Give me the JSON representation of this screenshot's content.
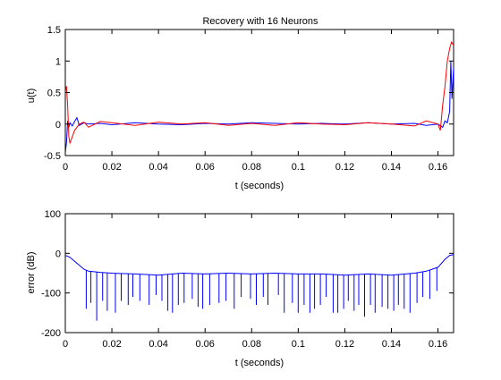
{
  "chart_data": [
    {
      "type": "line",
      "title": "Recovery with 16 Neurons",
      "xlabel": "t (seconds)",
      "ylabel": "u(t)",
      "xlim": [
        0,
        0.1667
      ],
      "ylim": [
        -0.5,
        1.5
      ],
      "xticks": [
        0,
        0.02,
        0.04,
        0.06,
        0.08,
        0.1,
        0.12,
        0.14,
        0.16
      ],
      "xtick_labels": [
        "0",
        "0.02",
        "0.04",
        "0.06",
        "0.08",
        "0.1",
        "0.12",
        "0.14",
        "0.16"
      ],
      "yticks": [
        -0.5,
        0,
        0.5,
        1,
        1.5
      ],
      "ytick_labels": [
        "-0.5",
        "0",
        "0.5",
        "1",
        "1.5"
      ],
      "grid": false,
      "series": [
        {
          "color": "#0000ff",
          "x": [
            0,
            0.0005,
            0.001,
            0.0015,
            0.002,
            0.003,
            0.004,
            0.005,
            0.006,
            0.008,
            0.01,
            0.015,
            0.02,
            0.03,
            0.04,
            0.05,
            0.06,
            0.07,
            0.08,
            0.09,
            0.1,
            0.11,
            0.12,
            0.13,
            0.14,
            0.15,
            0.155,
            0.16,
            0.162,
            0.163,
            0.164,
            0.165,
            0.1655,
            0.166,
            0.1667
          ],
          "y": [
            -0.45,
            -0.3,
            0.05,
            -0.05,
            0.02,
            -0.03,
            0.04,
            0.1,
            -0.02,
            0.02,
            0.0,
            0.01,
            -0.01,
            0.02,
            0.0,
            -0.01,
            0.01,
            0.0,
            0.02,
            0.01,
            0.0,
            0.01,
            0.0,
            0.02,
            0.0,
            0.01,
            -0.02,
            0.0,
            -0.05,
            0.05,
            0.02,
            0.2,
            1.0,
            0.4,
            0.9
          ]
        },
        {
          "color": "#ff0000",
          "x": [
            0,
            0.0005,
            0.001,
            0.0015,
            0.002,
            0.003,
            0.004,
            0.005,
            0.006,
            0.008,
            0.01,
            0.015,
            0.02,
            0.03,
            0.04,
            0.05,
            0.06,
            0.07,
            0.08,
            0.09,
            0.1,
            0.11,
            0.12,
            0.13,
            0.14,
            0.15,
            0.155,
            0.16,
            0.161,
            0.162,
            0.163,
            0.164,
            0.165,
            0.1658,
            0.1667
          ],
          "y": [
            0.5,
            0.6,
            0.3,
            -0.2,
            -0.3,
            -0.2,
            -0.1,
            -0.05,
            0.0,
            0.03,
            -0.05,
            0.04,
            0.02,
            -0.02,
            0.03,
            0.0,
            0.02,
            -0.02,
            0.01,
            -0.02,
            0.02,
            0.0,
            -0.01,
            0.02,
            0.0,
            -0.03,
            0.05,
            0.0,
            -0.1,
            0.3,
            0.6,
            1.0,
            1.2,
            1.3,
            1.25
          ]
        }
      ]
    },
    {
      "type": "line",
      "title": "",
      "xlabel": "t (seconds)",
      "ylabel": "error (dB)",
      "xlim": [
        0,
        0.1667
      ],
      "ylim": [
        -200,
        100
      ],
      "xticks": [
        0,
        0.02,
        0.04,
        0.06,
        0.08,
        0.1,
        0.12,
        0.14,
        0.16
      ],
      "xtick_labels": [
        "0",
        "0.02",
        "0.04",
        "0.06",
        "0.08",
        "0.1",
        "0.12",
        "0.14",
        "0.16"
      ],
      "yticks": [
        -200,
        -100,
        0,
        100
      ],
      "ytick_labels": [
        "-200",
        "-100",
        "0",
        "100"
      ],
      "grid": false,
      "series": [
        {
          "color": "#0000ff",
          "x": [
            0,
            0.002,
            0.004,
            0.006,
            0.008,
            0.01,
            0.015,
            0.02,
            0.03,
            0.04,
            0.05,
            0.06,
            0.07,
            0.08,
            0.09,
            0.1,
            0.11,
            0.12,
            0.13,
            0.14,
            0.15,
            0.155,
            0.16,
            0.163,
            0.165,
            0.1667
          ],
          "y": [
            -5,
            -10,
            -20,
            -30,
            -40,
            -45,
            -48,
            -50,
            -52,
            -55,
            -50,
            -52,
            -50,
            -52,
            -50,
            -52,
            -52,
            -55,
            -52,
            -55,
            -50,
            -45,
            -35,
            -15,
            -5,
            -3
          ],
          "dips": [
            [
              0.009,
              -140
            ],
            [
              0.011,
              -125
            ],
            [
              0.0135,
              -170
            ],
            [
              0.016,
              -120
            ],
            [
              0.018,
              -145
            ],
            [
              0.0215,
              -150
            ],
            [
              0.024,
              -120
            ],
            [
              0.027,
              -130
            ],
            [
              0.029,
              -110
            ],
            [
              0.032,
              -120
            ],
            [
              0.036,
              -130
            ],
            [
              0.039,
              -105
            ],
            [
              0.0415,
              -120
            ],
            [
              0.044,
              -145
            ],
            [
              0.046,
              -150
            ],
            [
              0.0485,
              -130
            ],
            [
              0.051,
              -125
            ],
            [
              0.0545,
              -115
            ],
            [
              0.057,
              -135
            ],
            [
              0.059,
              -140
            ],
            [
              0.062,
              -130
            ],
            [
              0.066,
              -125
            ],
            [
              0.069,
              -120
            ],
            [
              0.0725,
              -140
            ],
            [
              0.0755,
              -110
            ],
            [
              0.0795,
              -115
            ],
            [
              0.082,
              -130
            ],
            [
              0.085,
              -110
            ],
            [
              0.087,
              -130
            ],
            [
              0.0915,
              -105
            ],
            [
              0.094,
              -150
            ],
            [
              0.0975,
              -125
            ],
            [
              0.1,
              -150
            ],
            [
              0.1025,
              -130
            ],
            [
              0.105,
              -150
            ],
            [
              0.107,
              -140
            ],
            [
              0.1095,
              -130
            ],
            [
              0.112,
              -110
            ],
            [
              0.115,
              -150
            ],
            [
              0.117,
              -150
            ],
            [
              0.1195,
              -140
            ],
            [
              0.1215,
              -120
            ],
            [
              0.124,
              -145
            ],
            [
              0.126,
              -130
            ],
            [
              0.1285,
              -160
            ],
            [
              0.131,
              -130
            ],
            [
              0.133,
              -150
            ],
            [
              0.136,
              -135
            ],
            [
              0.1385,
              -140
            ],
            [
              0.141,
              -145
            ],
            [
              0.143,
              -130
            ],
            [
              0.1455,
              -140
            ],
            [
              0.148,
              -150
            ],
            [
              0.151,
              -125
            ],
            [
              0.1535,
              -110
            ],
            [
              0.1565,
              -115
            ],
            [
              0.1595,
              -95
            ]
          ]
        }
      ]
    }
  ]
}
